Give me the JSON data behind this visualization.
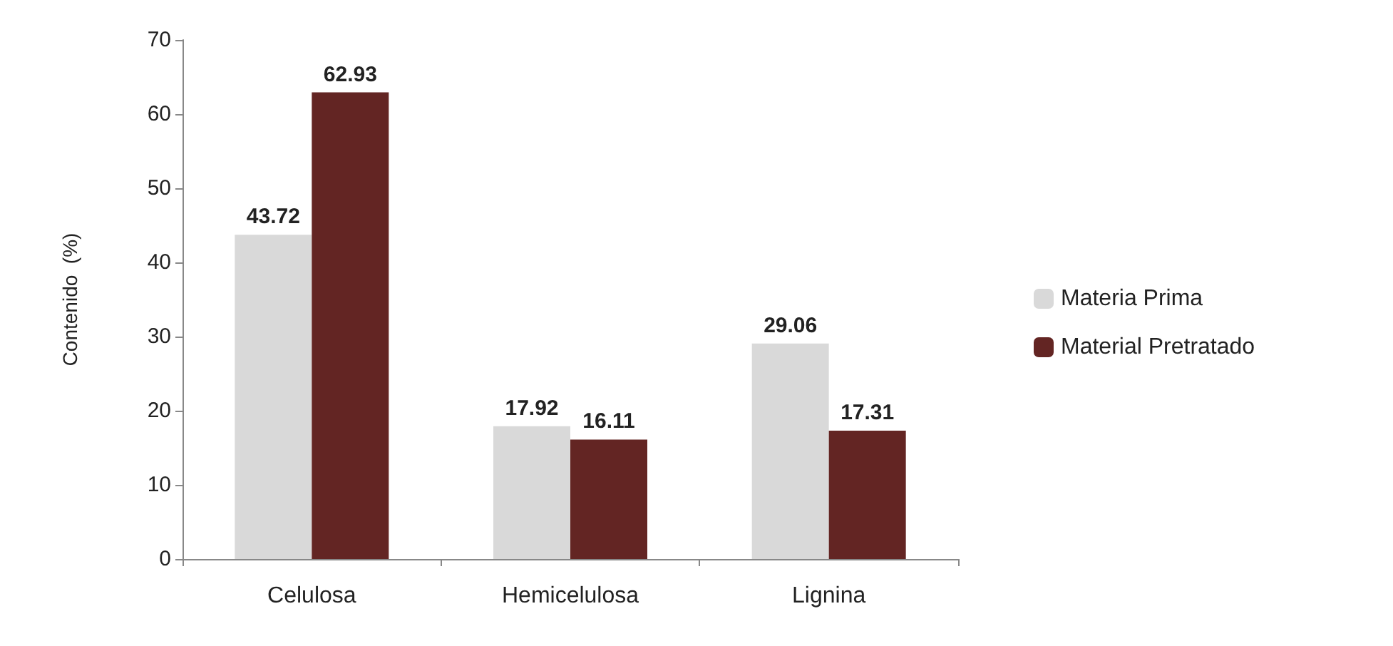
{
  "chart_data": {
    "type": "bar",
    "ylabel": "Contenido  (%)",
    "categories": [
      "Celulosa",
      "Hemicelulosa",
      "Lignina"
    ],
    "series": [
      {
        "name": "Materia Prima",
        "color": "#d9d9d9",
        "values": [
          43.72,
          17.92,
          29.06
        ]
      },
      {
        "name": "Material Pretratado",
        "color": "#632523",
        "values": [
          62.93,
          16.11,
          17.31
        ]
      }
    ],
    "ylim": [
      0,
      70
    ],
    "yticks": [
      0,
      10,
      20,
      30,
      40,
      50,
      60,
      70
    ],
    "grid": false,
    "legend": "right",
    "data_labels": true
  }
}
